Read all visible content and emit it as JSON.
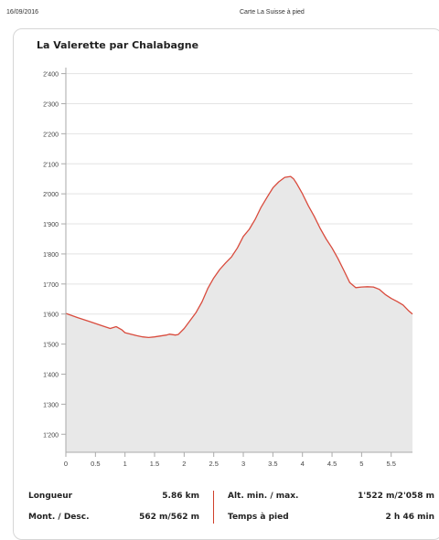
{
  "header": {
    "date": "16/09/2016",
    "title": "Carte La Suisse à pied"
  },
  "route": {
    "title": "La Valerette par Chalabagne"
  },
  "chart_data": {
    "type": "area",
    "title": "La Valerette par Chalabagne",
    "xlabel": "",
    "ylabel": "",
    "xlim": [
      0,
      5.86
    ],
    "ylim": [
      1140,
      2420
    ],
    "x_ticks": [
      0,
      0.5,
      1,
      1.5,
      2,
      2.5,
      3,
      3.5,
      4,
      4.5,
      5,
      5.5
    ],
    "x_tick_labels": [
      "0",
      "0.5",
      "1",
      "1.5",
      "2",
      "2.5",
      "3",
      "3.5",
      "4",
      "4.5",
      "5",
      "5.5"
    ],
    "y_ticks": [
      1200,
      1300,
      1400,
      1500,
      1600,
      1700,
      1800,
      1900,
      2000,
      2100,
      2200,
      2300,
      2400
    ],
    "y_tick_labels": [
      "1'200",
      "1'300",
      "1'400",
      "1'500",
      "1'600",
      "1'700",
      "1'800",
      "1'900",
      "2'000",
      "2'100",
      "2'200",
      "2'300",
      "2'400"
    ],
    "grid": true,
    "line_color": "#d94b3d",
    "fill_color": "#e8e8e8",
    "series": [
      {
        "x": [
          0,
          0.2,
          0.4,
          0.6,
          0.75,
          0.85,
          0.95,
          1.0,
          1.1,
          1.2,
          1.3,
          1.4,
          1.5,
          1.6,
          1.7,
          1.75,
          1.85,
          1.9,
          2.0,
          2.1,
          2.2,
          2.3,
          2.4,
          2.5,
          2.6,
          2.7,
          2.8,
          2.9,
          3.0,
          3.1,
          3.2,
          3.3,
          3.4,
          3.5,
          3.6,
          3.7,
          3.8,
          3.85,
          3.9,
          4.0,
          4.1,
          4.2,
          4.3,
          4.4,
          4.5,
          4.6,
          4.7,
          4.8,
          4.9,
          5.0,
          5.1,
          5.2,
          5.3,
          5.4,
          5.5,
          5.6,
          5.7,
          5.8,
          5.86
        ],
        "y": [
          1602,
          1588,
          1575,
          1562,
          1552,
          1558,
          1547,
          1538,
          1533,
          1528,
          1524,
          1522,
          1524,
          1527,
          1530,
          1533,
          1530,
          1532,
          1552,
          1578,
          1605,
          1640,
          1685,
          1720,
          1748,
          1770,
          1790,
          1820,
          1858,
          1882,
          1915,
          1955,
          1988,
          2020,
          2040,
          2055,
          2058,
          2050,
          2035,
          2000,
          1960,
          1925,
          1885,
          1850,
          1820,
          1785,
          1745,
          1705,
          1688,
          1690,
          1691,
          1690,
          1682,
          1665,
          1652,
          1642,
          1630,
          1610,
          1600
        ]
      }
    ]
  },
  "stats": {
    "length_label": "Longueur",
    "length_value": "5.86 km",
    "ascent_label": "Mont. / Desc.",
    "ascent_value": "562 m/562 m",
    "altitude_label": "Alt. min. / max.",
    "altitude_value": "1'522 m/2'058 m",
    "time_label": "Temps à pied",
    "time_value": "2 h 46 min"
  }
}
